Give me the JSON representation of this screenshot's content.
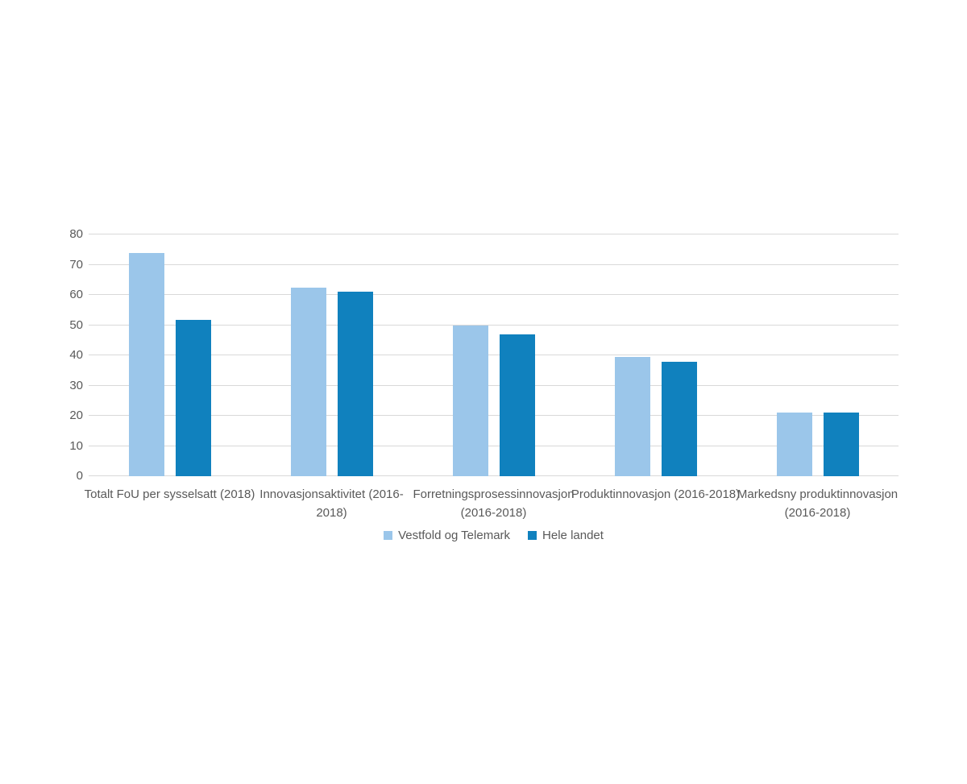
{
  "chart_data": {
    "type": "bar",
    "categories": [
      "Totalt FoU per sysselsatt (2018)",
      "Innovasjonsaktivitet (2016-\n2018)",
      "Forretningsprosessinnovasjon\n(2016-2018)",
      "Produktinnovasjon (2016-2018)",
      "Markedsny produktinnovasjon\n(2016-2018)"
    ],
    "series": [
      {
        "name": "Vestfold og Telemark",
        "color": "#9BC6EA",
        "values": [
          74,
          62.3,
          49.8,
          39.5,
          21.2
        ]
      },
      {
        "name": "Hele landet",
        "color": "#1081BE",
        "values": [
          51.8,
          61,
          47,
          38,
          21
        ]
      }
    ],
    "title": "",
    "xlabel": "",
    "ylabel": "",
    "ylim": [
      0,
      80
    ],
    "ytick_step": 10,
    "ytick_labels": [
      "0",
      "10",
      "20",
      "30",
      "40",
      "50",
      "60",
      "70",
      "80"
    ],
    "grid": true,
    "legend_position": "bottom-center",
    "colors": {
      "gridline": "#d9d9d9",
      "axis_text": "#595959",
      "background": "#ffffff"
    }
  }
}
